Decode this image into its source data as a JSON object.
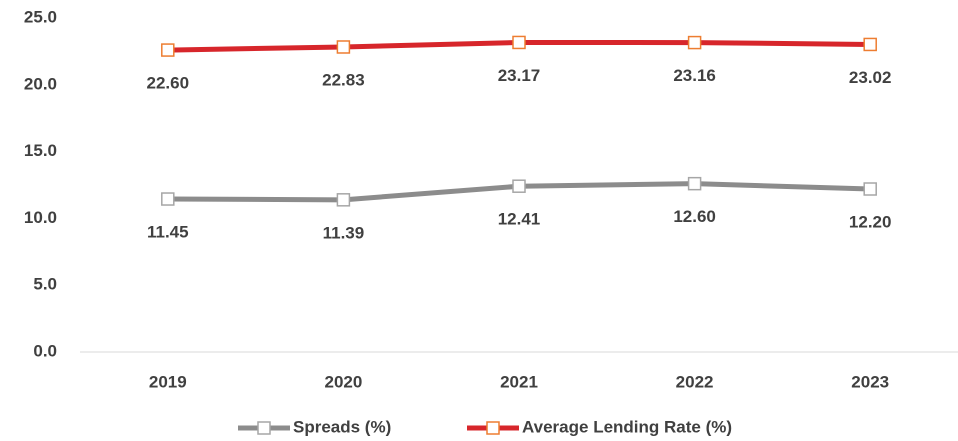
{
  "chart_data": {
    "type": "line",
    "categories": [
      "2019",
      "2020",
      "2021",
      "2022",
      "2023"
    ],
    "series": [
      {
        "name": "Spreads (%)",
        "color": "#8c8c8c",
        "marker_color": "#a6a6a6",
        "values": [
          11.45,
          11.39,
          12.41,
          12.6,
          12.2
        ],
        "value_labels": [
          "11.45",
          "11.39",
          "12.41",
          "12.60",
          "12.20"
        ]
      },
      {
        "name": "Average Lending Rate (%)",
        "color": "#d7262b",
        "marker_color": "#ed7d31",
        "values": [
          22.6,
          22.83,
          23.17,
          23.16,
          23.02
        ],
        "value_labels": [
          "22.60",
          "22.83",
          "23.17",
          "23.16",
          "23.02"
        ]
      }
    ],
    "ylim": [
      0,
      25
    ],
    "yticks": [
      {
        "value": 0,
        "label": "0.0"
      },
      {
        "value": 5,
        "label": "5.0"
      },
      {
        "value": 10,
        "label": "10.0"
      },
      {
        "value": 15,
        "label": "15.0"
      },
      {
        "value": 20,
        "label": "20.0"
      },
      {
        "value": 25,
        "label": "25.0"
      }
    ],
    "grid": false,
    "legend": "bottom"
  }
}
